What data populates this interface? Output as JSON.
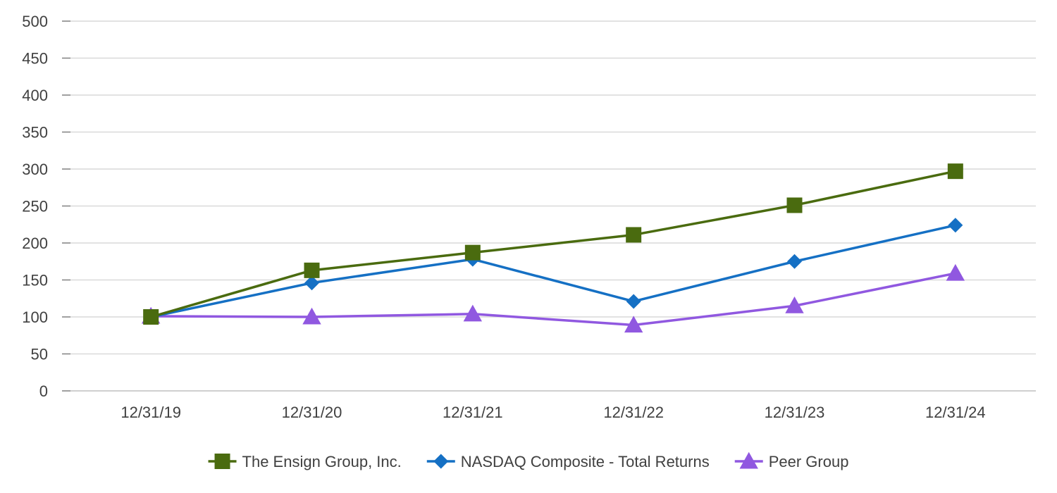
{
  "chart_data": {
    "type": "line",
    "title": "",
    "xlabel": "",
    "ylabel": "",
    "categories": [
      "12/31/19",
      "12/31/20",
      "12/31/21",
      "12/31/22",
      "12/31/23",
      "12/31/24"
    ],
    "ylim": [
      0,
      500
    ],
    "yticks": [
      0,
      50,
      100,
      150,
      200,
      250,
      300,
      350,
      400,
      450,
      500
    ],
    "grid": true,
    "legend_position": "bottom",
    "series": [
      {
        "name": "The Ensign Group, Inc.",
        "color": "#4a6b0f",
        "marker": "square",
        "values": [
          100,
          163,
          187,
          211,
          251,
          297
        ]
      },
      {
        "name": "NASDAQ Composite - Total Returns",
        "color": "#1570c4",
        "marker": "diamond",
        "values": [
          100,
          146,
          178,
          121,
          175,
          224
        ]
      },
      {
        "name": "Peer Group",
        "color": "#9058e0",
        "marker": "triangle",
        "values": [
          101,
          100,
          104,
          89,
          115,
          159
        ]
      }
    ]
  }
}
